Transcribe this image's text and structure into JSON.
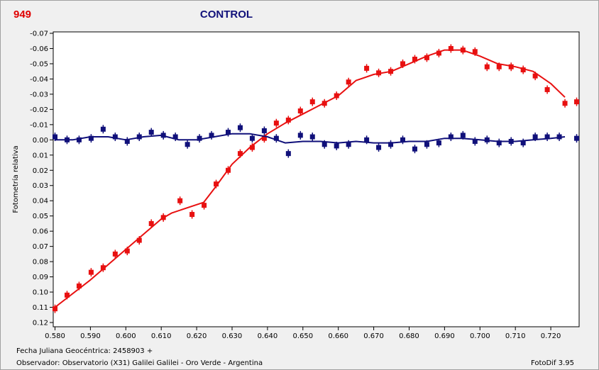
{
  "header": {
    "star_number": "949",
    "title": "CONTROL"
  },
  "footer": {
    "line1": "Fecha Juliana Geocéntrica: 2458903 +",
    "line2": "Observador: Observatorio (X31) Galilei Galilei - Oro Verde - Argentina",
    "version": "FotoDif 3.95"
  },
  "colors": {
    "variable": "#e81010",
    "control": "#10107a",
    "plot_bg": "#ffffff",
    "window_bg": "#f0f0f0"
  },
  "chart_data": {
    "type": "scatter",
    "title": "CONTROL",
    "xlabel": "Fecha Juliana Geocéntrica: 2458903 +",
    "ylabel": "Fotometría relativa",
    "xlim": [
      0.5795,
      0.728
    ],
    "ylim": [
      -0.07,
      0.12
    ],
    "y_inverted": true,
    "grid": false,
    "x_ticks": [
      "0.580",
      "0.590",
      "0.600",
      "0.610",
      "0.620",
      "0.630",
      "0.640",
      "0.650",
      "0.660",
      "0.670",
      "0.680",
      "0.690",
      "0.700",
      "0.710",
      "0.720"
    ],
    "x_tick_values": [
      0.58,
      0.59,
      0.6,
      0.61,
      0.62,
      0.63,
      0.64,
      0.65,
      0.66,
      0.67,
      0.68,
      0.69,
      0.7,
      0.71,
      0.72
    ],
    "y_ticks": [
      "-0.07",
      "-0.06",
      "-0.05",
      "-0.04",
      "-0.03",
      "-0.02",
      "-0.01",
      "0.00",
      "0.01",
      "0.02",
      "0.03",
      "0.04",
      "0.05",
      "0.06",
      "0.07",
      "0.08",
      "0.09",
      "0.10",
      "0.11",
      "0.12"
    ],
    "y_tick_values": [
      -0.07,
      -0.06,
      -0.05,
      -0.04,
      -0.03,
      -0.02,
      -0.01,
      0.0,
      0.01,
      0.02,
      0.03,
      0.04,
      0.05,
      0.06,
      0.07,
      0.08,
      0.09,
      0.1,
      0.11,
      0.12
    ],
    "series": [
      {
        "color": "#e81010",
        "points": {
          "x": [
            0.58,
            0.5834,
            0.5868,
            0.5902,
            0.5936,
            0.597,
            0.6004,
            0.6038,
            0.6072,
            0.6106,
            0.6153,
            0.6187,
            0.6221,
            0.6255,
            0.6289,
            0.6323,
            0.6357,
            0.6391,
            0.6425,
            0.6459,
            0.6493,
            0.6527,
            0.6561,
            0.6595,
            0.6629,
            0.668,
            0.6714,
            0.6748,
            0.6782,
            0.6816,
            0.685,
            0.6884,
            0.6918,
            0.6952,
            0.6986,
            0.702,
            0.7054,
            0.7088,
            0.7122,
            0.7156,
            0.719,
            0.724,
            0.7273
          ],
          "y": [
            0.111,
            0.102,
            0.096,
            0.087,
            0.084,
            0.075,
            0.073,
            0.066,
            0.055,
            0.051,
            0.04,
            0.049,
            0.043,
            0.029,
            0.02,
            0.009,
            0.005,
            -0.001,
            -0.011,
            -0.013,
            -0.019,
            -0.025,
            -0.024,
            -0.029,
            -0.038,
            -0.047,
            -0.044,
            -0.045,
            -0.05,
            -0.053,
            -0.054,
            -0.057,
            -0.06,
            -0.059,
            -0.058,
            -0.048,
            -0.048,
            -0.048,
            -0.046,
            -0.042,
            -0.033,
            -0.024,
            -0.025
          ]
        },
        "fit": {
          "x": [
            0.58,
            0.59,
            0.6,
            0.61,
            0.613,
            0.622,
            0.625,
            0.63,
            0.635,
            0.64,
            0.645,
            0.65,
            0.655,
            0.66,
            0.665,
            0.67,
            0.675,
            0.68,
            0.685,
            0.69,
            0.695,
            0.7,
            0.705,
            0.71,
            0.715,
            0.72,
            0.724
          ],
          "y": [
            0.11,
            0.092,
            0.072,
            0.052,
            0.048,
            0.041,
            0.032,
            0.016,
            0.005,
            -0.004,
            -0.011,
            -0.017,
            -0.023,
            -0.029,
            -0.039,
            -0.043,
            -0.045,
            -0.05,
            -0.055,
            -0.059,
            -0.059,
            -0.055,
            -0.05,
            -0.048,
            -0.045,
            -0.037,
            -0.028
          ]
        }
      },
      {
        "color": "#10107a",
        "points": {
          "x": [
            0.58,
            0.5834,
            0.5868,
            0.5902,
            0.5936,
            0.597,
            0.6004,
            0.6038,
            0.6072,
            0.6106,
            0.614,
            0.6174,
            0.6208,
            0.6242,
            0.6289,
            0.6323,
            0.6357,
            0.6391,
            0.6425,
            0.6459,
            0.6493,
            0.6527,
            0.6561,
            0.6595,
            0.6629,
            0.668,
            0.6714,
            0.6748,
            0.6782,
            0.6816,
            0.685,
            0.6884,
            0.6918,
            0.6952,
            0.6986,
            0.702,
            0.7054,
            0.7088,
            0.7122,
            0.7156,
            0.719,
            0.7224,
            0.7273
          ],
          "y": [
            -0.002,
            0.0,
            0.0,
            -0.001,
            -0.007,
            -0.002,
            0.001,
            -0.002,
            -0.005,
            -0.003,
            -0.002,
            0.003,
            -0.001,
            -0.003,
            -0.005,
            -0.008,
            -0.001,
            -0.006,
            -0.001,
            0.009,
            -0.003,
            -0.002,
            0.003,
            0.004,
            0.003,
            0.0,
            0.005,
            0.003,
            0.0,
            0.006,
            0.003,
            0.002,
            -0.002,
            -0.003,
            0.001,
            0.0,
            0.002,
            0.001,
            0.002,
            -0.002,
            -0.002,
            -0.002,
            -0.001
          ]
        },
        "fit": {
          "x": [
            0.58,
            0.585,
            0.59,
            0.595,
            0.6,
            0.605,
            0.61,
            0.615,
            0.62,
            0.625,
            0.63,
            0.635,
            0.64,
            0.645,
            0.65,
            0.655,
            0.66,
            0.665,
            0.67,
            0.675,
            0.68,
            0.685,
            0.69,
            0.695,
            0.7,
            0.705,
            0.71,
            0.715,
            0.72,
            0.724
          ],
          "y": [
            0.0,
            0.0,
            -0.002,
            -0.002,
            0.0,
            -0.002,
            -0.003,
            0.0,
            0.0,
            -0.002,
            -0.004,
            -0.004,
            -0.002,
            0.002,
            0.001,
            0.001,
            0.002,
            0.001,
            0.002,
            0.002,
            0.001,
            0.001,
            -0.001,
            -0.001,
            0.0,
            0.001,
            0.001,
            0.0,
            -0.001,
            -0.002
          ]
        }
      }
    ]
  }
}
